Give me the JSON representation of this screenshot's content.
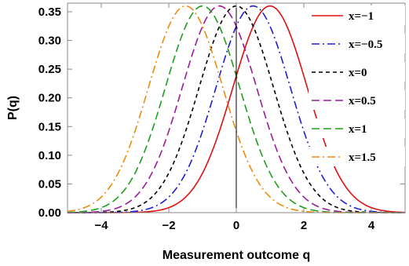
{
  "chart_data": {
    "type": "line",
    "xlabel": "Measurement outcome q",
    "ylabel": "P(q)",
    "xlim": [
      -5,
      5
    ],
    "ylim": [
      0,
      0.365
    ],
    "xticks": [
      -4,
      -2,
      0,
      2,
      4
    ],
    "xtick_labels": [
      "−4",
      "−2",
      "0",
      "2",
      "4"
    ],
    "yticks": [
      0.0,
      0.05,
      0.1,
      0.15,
      0.2,
      0.25,
      0.3,
      0.35
    ],
    "ytick_labels": [
      "0.00",
      "0.05",
      "0.10",
      "0.15",
      "0.20",
      "0.25",
      "0.30",
      "0.35"
    ],
    "grid": false,
    "legend_position": "right",
    "curve": "gaussian",
    "peak_value": 0.36,
    "sigma": 1.1,
    "series": [
      {
        "name": "x=−1",
        "center": 1.0,
        "color": "#e01010",
        "style": "solid"
      },
      {
        "name": "x=−0.5",
        "center": 0.5,
        "color": "#1f1fcf",
        "style": "dashdot"
      },
      {
        "name": "x=0",
        "center": 0.0,
        "color": "#000000",
        "style": "dashed"
      },
      {
        "name": "x=0.5",
        "center": -0.5,
        "color": "#9b1a9b",
        "style": "longdash"
      },
      {
        "name": "x=1",
        "center": -1.0,
        "color": "#1e9e1e",
        "style": "longdash"
      },
      {
        "name": "x=1.5",
        "center": -1.5,
        "color": "#ee8a0c",
        "style": "dashdot"
      }
    ]
  }
}
